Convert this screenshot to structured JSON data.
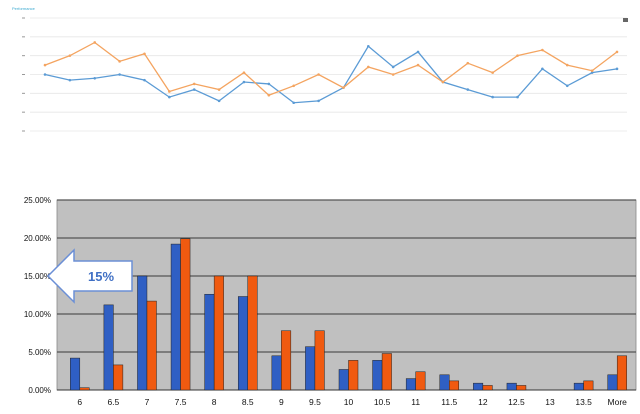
{
  "chart_data": [
    {
      "type": "line",
      "title": "Performance",
      "grid": true,
      "legend": "top-right",
      "ylim": [
        0,
        6
      ],
      "x": [
        1,
        2,
        3,
        4,
        5,
        6,
        7,
        8,
        9,
        10,
        11,
        12,
        13,
        14,
        15,
        16,
        17,
        18,
        19,
        20,
        21,
        22,
        23,
        24
      ],
      "series": [
        {
          "color": "#5b9bd5",
          "values": [
            3.0,
            2.7,
            2.8,
            3.0,
            2.7,
            1.8,
            2.2,
            1.6,
            2.6,
            2.5,
            1.5,
            1.6,
            2.3,
            4.5,
            3.4,
            4.2,
            2.6,
            2.2,
            1.8,
            1.8,
            3.3,
            2.4,
            3.1,
            3.3
          ]
        },
        {
          "color": "#f4a460",
          "values": [
            3.5,
            4.0,
            4.7,
            3.7,
            4.1,
            2.1,
            2.5,
            2.2,
            3.1,
            1.9,
            2.4,
            3.0,
            2.3,
            3.4,
            3.0,
            3.5,
            2.6,
            3.6,
            3.1,
            4.0,
            4.3,
            3.5,
            3.2,
            4.2
          ]
        }
      ]
    },
    {
      "type": "bar",
      "categories": [
        "6",
        "6.5",
        "7",
        "7.5",
        "8",
        "8.5",
        "9",
        "9.5",
        "10",
        "10.5",
        "11",
        "11.5",
        "12",
        "12.5",
        "13",
        "13.5",
        "More"
      ],
      "yticks": [
        "0.00%",
        "5.00%",
        "10.00%",
        "15.00%",
        "20.00%",
        "25.00%"
      ],
      "ylim": [
        0,
        25
      ],
      "grid": true,
      "background": "#c0c0c0",
      "series": [
        {
          "color": "#2f5fc4",
          "values": [
            4.2,
            11.2,
            15.0,
            19.2,
            12.6,
            12.3,
            4.5,
            5.7,
            2.7,
            3.9,
            1.5,
            2.0,
            0.9,
            0.9,
            0,
            0.9,
            2.0
          ]
        },
        {
          "color": "#f05a10",
          "values": [
            0.3,
            3.3,
            11.7,
            19.9,
            15.0,
            15.0,
            7.8,
            7.8,
            3.9,
            4.8,
            2.4,
            1.2,
            0.6,
            0.6,
            0,
            1.2,
            4.5
          ]
        }
      ],
      "annotation": {
        "text": "15%",
        "value": 15
      }
    }
  ]
}
